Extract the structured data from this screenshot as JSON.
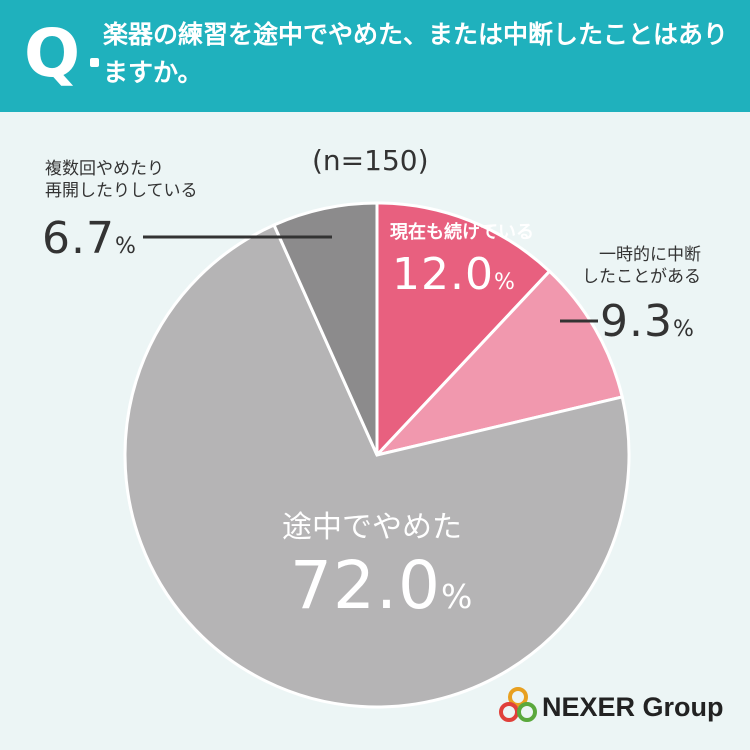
{
  "question": {
    "mark": "Q",
    "text": "楽器の練習を途中でやめた、または中断したことはありますか。"
  },
  "sample_label": "(n=150)",
  "labels": {
    "continue_name": "現在も続けている",
    "continue_value": "12.0",
    "stopped_once_name_line1": "一時的に中断",
    "stopped_once_name_line2": "したことがある",
    "stopped_once_value": "9.3",
    "quit_name": "途中でやめた",
    "quit_value": "72.0",
    "interrupt_name_line1": "複数回やめたり",
    "interrupt_name_line2": "再開したりしている",
    "interrupt_value": "6.7",
    "percent": "%"
  },
  "logo": {
    "text": "NEXER Group"
  },
  "colors": {
    "header": "#1fb1bd",
    "background": "#ecf5f5",
    "continue": "#e8607f",
    "stopped_once": "#f198ae",
    "quit": "#b5b4b5",
    "interrupt": "#8c8b8c"
  },
  "chart_data": {
    "type": "pie",
    "title": "楽器の練習を途中でやめた、または中断したことはありますか。",
    "subtitle": "(n=150)",
    "categories": [
      "現在も続けている",
      "一時的に中断したことがある",
      "途中でやめた",
      "複数回やめたり再開したりしている"
    ],
    "values": [
      12.0,
      9.3,
      72.0,
      6.7
    ],
    "unit": "%",
    "start_angle": "top",
    "direction": "clockwise"
  }
}
